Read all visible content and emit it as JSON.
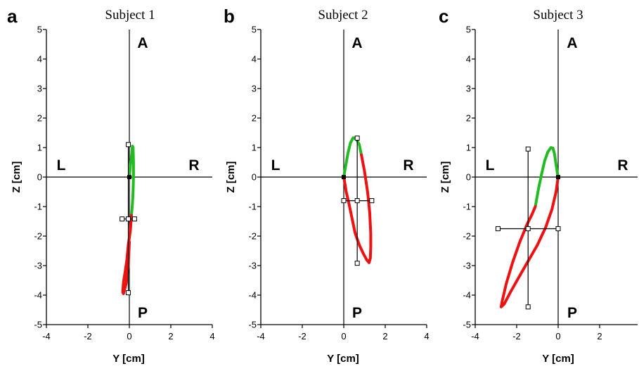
{
  "chart_data": [
    {
      "type": "line",
      "panel_letter": "a",
      "title": "Subject 1",
      "xlabel": "Y [cm]",
      "ylabel": "Z [cm]",
      "xlim": [
        -4,
        4
      ],
      "ylim": [
        -5,
        5
      ],
      "x_ticks": [
        "-4",
        "-2",
        "0",
        "2",
        "4"
      ],
      "y_ticks": [
        "5",
        "4",
        "3",
        "2",
        "1",
        "0",
        "-1",
        "-2",
        "-3",
        "-4",
        "-5"
      ],
      "direction_labels": {
        "left": "L",
        "right": "R",
        "top": "A",
        "bottom": "P"
      },
      "grid": false,
      "colors": {
        "phase1": "#22bb22",
        "phase2": "#ee1111",
        "marker": "#000000"
      },
      "series": [
        {
          "x": [
            0,
            0.05,
            0.12,
            0.15,
            0.18,
            0.2,
            0.2,
            0.18,
            0.15,
            0.12,
            0.1
          ],
          "y": [
            0,
            0.4,
            0.8,
            1.05,
            1.0,
            0.5,
            0,
            -0.5,
            -0.9,
            -1.15,
            -1.3
          ]
        },
        {
          "x": [
            0.1,
            0.05,
            -0.05,
            -0.12,
            -0.2,
            -0.28,
            -0.32,
            -0.28,
            -0.15,
            -0.05,
            0
          ],
          "y": [
            -1.3,
            -1.8,
            -2.3,
            -2.8,
            -3.2,
            -3.55,
            -3.9,
            -3.95,
            -3.6,
            -3.0,
            -2.2
          ]
        }
      ],
      "markers": {
        "start": [
          0,
          0
        ],
        "mean": [
          -0.05,
          -1.42
        ],
        "y_bar": [
          -0.35,
          0.25
        ],
        "z_bar": [
          -3.92,
          1.1
        ]
      }
    },
    {
      "type": "line",
      "panel_letter": "b",
      "title": "Subject 2",
      "xlabel": "Y [cm]",
      "ylabel": "Z [cm]",
      "xlim": [
        -4,
        4
      ],
      "ylim": [
        -5,
        5
      ],
      "x_ticks": [
        "-4",
        "-2",
        "0",
        "2",
        "4"
      ],
      "y_ticks": [
        "5",
        "4",
        "3",
        "2",
        "1",
        "0",
        "-1",
        "-2",
        "-3",
        "-4",
        "-5"
      ],
      "direction_labels": {
        "left": "L",
        "right": "R",
        "top": "A",
        "bottom": "P"
      },
      "grid": false,
      "colors": {
        "phase1": "#22bb22",
        "phase2": "#ee1111",
        "marker": "#000000"
      },
      "series": [
        {
          "x": [
            0,
            0.1,
            0.2,
            0.32,
            0.45,
            0.6,
            0.75,
            0.85
          ],
          "y": [
            0,
            0.4,
            0.8,
            1.15,
            1.33,
            1.3,
            1.1,
            0.75
          ]
        },
        {
          "x": [
            0.85,
            1.0,
            1.15,
            1.25,
            1.3,
            1.3,
            1.28,
            1.22,
            1.1,
            0.95,
            0.75,
            0.55,
            0.4,
            0.25,
            0.12,
            0.05,
            0
          ],
          "y": [
            0.75,
            0.2,
            -0.5,
            -1.2,
            -1.9,
            -2.4,
            -2.75,
            -2.9,
            -2.8,
            -2.6,
            -2.3,
            -1.9,
            -1.4,
            -0.9,
            -0.5,
            -0.2,
            0
          ]
        }
      ],
      "markers": {
        "start": [
          0,
          0
        ],
        "mean": [
          0.65,
          -0.8
        ],
        "y_bar": [
          0,
          1.35
        ],
        "z_bar": [
          -2.92,
          1.32
        ]
      }
    },
    {
      "type": "line",
      "panel_letter": "c",
      "title": "Subject 3",
      "xlabel": "Y [cm]",
      "ylabel": "Z [cm]",
      "xlim": [
        -4,
        4
      ],
      "ylim": [
        -5,
        5
      ],
      "x_ticks": [
        "-4",
        "-2",
        "0",
        "2",
        "4"
      ],
      "y_ticks": [
        "5",
        "4",
        "3",
        "2",
        "1",
        "0",
        "-1",
        "-2",
        "-3",
        "-4",
        "-5"
      ],
      "direction_labels": {
        "left": "L",
        "right": "R",
        "top": "A",
        "bottom": "P"
      },
      "grid": false,
      "colors": {
        "phase1": "#22bb22",
        "phase2": "#ee1111",
        "marker": "#000000"
      },
      "series": [
        {
          "x": [
            -1.1,
            -0.95,
            -0.8,
            -0.65,
            -0.5,
            -0.35,
            -0.25,
            -0.18,
            -0.12,
            -0.05,
            0
          ],
          "y": [
            -1.0,
            -0.4,
            0.1,
            0.55,
            0.85,
            1.0,
            0.98,
            0.8,
            0.5,
            0.2,
            0
          ]
        },
        {
          "x": [
            0,
            -0.1,
            -0.3,
            -0.6,
            -1.0,
            -1.45,
            -1.9,
            -2.3,
            -2.6,
            -2.75,
            -2.7,
            -2.5,
            -2.2,
            -1.85,
            -1.5,
            -1.25,
            -1.1
          ],
          "y": [
            0,
            -0.5,
            -1.1,
            -1.7,
            -2.3,
            -2.85,
            -3.4,
            -3.9,
            -4.3,
            -4.4,
            -4.2,
            -3.6,
            -2.9,
            -2.2,
            -1.6,
            -1.25,
            -1.0
          ]
        }
      ],
      "markers": {
        "start": [
          0,
          0
        ],
        "mean": [
          -1.45,
          -1.75
        ],
        "y_bar": [
          -2.9,
          0
        ],
        "z_bar": [
          -4.4,
          0.95
        ]
      }
    }
  ]
}
